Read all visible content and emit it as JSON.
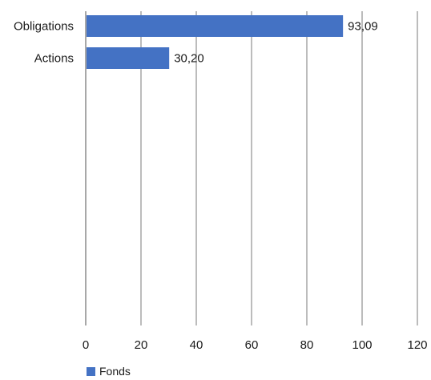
{
  "chart_data": {
    "type": "bar",
    "orientation": "horizontal",
    "title": "",
    "xlabel": "",
    "ylabel": "",
    "categories": [
      "Obligations",
      "Actions"
    ],
    "series": [
      {
        "name": "Fonds",
        "values": [
          93.09,
          30.2
        ],
        "data_labels": [
          "93,09",
          "30,20"
        ],
        "color": "#4472C4"
      }
    ],
    "xlim": [
      0,
      120
    ],
    "x_ticks": [
      0,
      20,
      40,
      60,
      80,
      100,
      120
    ],
    "grid": "vertical",
    "legend": "bottom-left"
  }
}
